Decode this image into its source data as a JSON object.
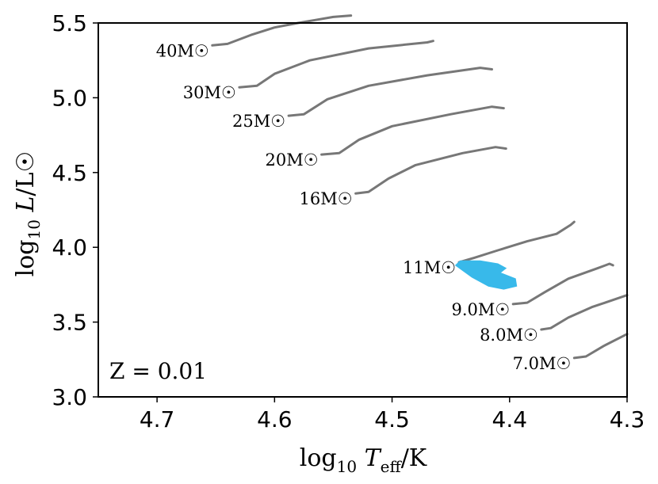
{
  "chart_data": {
    "type": "line",
    "title": "",
    "xlabel": "log10 Teff/K",
    "ylabel": "log10 L/L☉",
    "xlim": [
      4.75,
      4.3
    ],
    "ylim": [
      3.0,
      5.5
    ],
    "x_inverted": true,
    "xticks": [
      "4.7",
      "4.6",
      "4.5",
      "4.4",
      "4.3"
    ],
    "yticks": [
      "3.0",
      "3.5",
      "4.0",
      "4.5",
      "5.0",
      "5.5"
    ],
    "grid": false,
    "annotation": "Z = 0.01",
    "track_color": "#777777",
    "region_color": "#38b9ea",
    "series": [
      {
        "name": "40M☉",
        "x": [
          4.653,
          4.64,
          4.62,
          4.6,
          4.58,
          4.565,
          4.55,
          4.535
        ],
        "y": [
          5.35,
          5.36,
          5.42,
          5.47,
          5.5,
          5.52,
          5.54,
          5.55
        ]
      },
      {
        "name": "30M☉",
        "x": [
          4.63,
          4.615,
          4.6,
          4.57,
          4.52,
          4.47,
          4.465
        ],
        "y": [
          5.07,
          5.08,
          5.16,
          5.25,
          5.33,
          5.37,
          5.38
        ]
      },
      {
        "name": "25M☉",
        "x": [
          4.588,
          4.575,
          4.555,
          4.52,
          4.47,
          4.425,
          4.415
        ],
        "y": [
          4.88,
          4.89,
          4.99,
          5.08,
          5.15,
          5.2,
          5.19
        ]
      },
      {
        "name": "20M☉",
        "x": [
          4.56,
          4.545,
          4.528,
          4.5,
          4.45,
          4.415,
          4.405
        ],
        "y": [
          4.62,
          4.63,
          4.72,
          4.81,
          4.89,
          4.94,
          4.93
        ]
      },
      {
        "name": "16M☉",
        "x": [
          4.531,
          4.52,
          4.503,
          4.48,
          4.44,
          4.412,
          4.403
        ],
        "y": [
          4.36,
          4.37,
          4.46,
          4.55,
          4.63,
          4.67,
          4.66
        ]
      },
      {
        "name": "11M☉",
        "x": [
          4.443,
          4.43,
          4.41,
          4.385,
          4.36,
          4.348,
          4.345
        ],
        "y": [
          3.9,
          3.93,
          3.98,
          4.04,
          4.09,
          4.15,
          4.17
        ]
      },
      {
        "name": "9.0M☉",
        "x": [
          4.397,
          4.385,
          4.37,
          4.35,
          4.325,
          4.315,
          4.312
        ],
        "y": [
          3.62,
          3.63,
          3.7,
          3.79,
          3.86,
          3.89,
          3.88
        ]
      },
      {
        "name": "8.0M☉",
        "x": [
          4.373,
          4.365,
          4.35,
          4.33,
          4.315,
          4.3
        ],
        "y": [
          3.45,
          3.46,
          3.53,
          3.6,
          3.64,
          3.68
        ]
      },
      {
        "name": "7.0M☉",
        "x": [
          4.345,
          4.335,
          4.32,
          4.3
        ],
        "y": [
          3.26,
          3.27,
          3.34,
          3.42
        ]
      }
    ],
    "region": {
      "x": [
        4.442,
        4.425,
        4.41,
        4.403,
        4.408,
        4.395,
        4.394,
        4.405,
        4.418,
        4.432,
        4.446
      ],
      "y": [
        3.91,
        3.91,
        3.89,
        3.86,
        3.83,
        3.79,
        3.74,
        3.72,
        3.74,
        3.8,
        3.88
      ]
    }
  }
}
